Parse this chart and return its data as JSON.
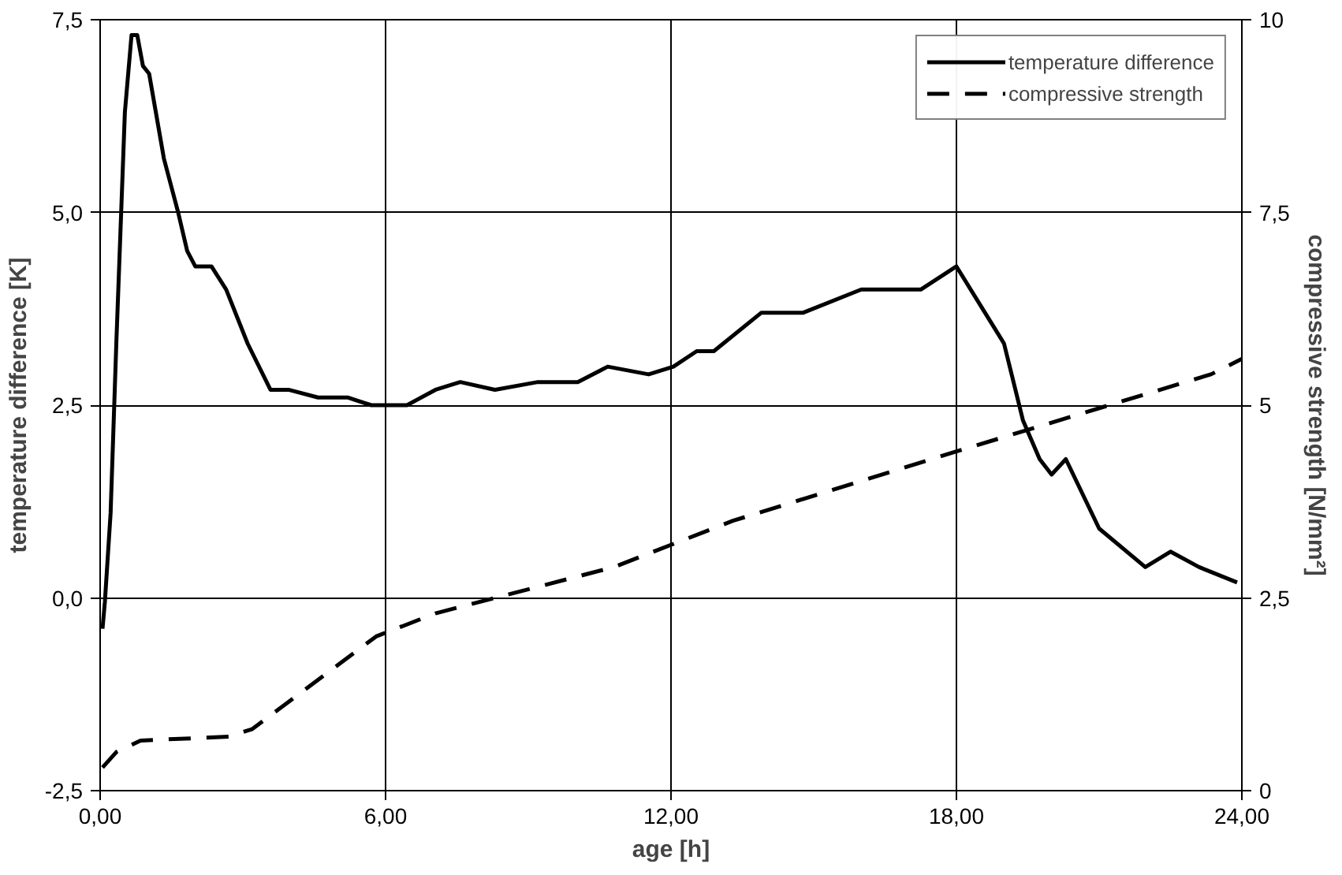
{
  "chart_data": {
    "type": "line",
    "xlabel": "age [h]",
    "ylabel": "temperature difference [K]",
    "y2label": "compressive strength [N/mm²]",
    "xlim": [
      0,
      24
    ],
    "xticks": [
      {
        "value": 0,
        "label": "0,00"
      },
      {
        "value": 6,
        "label": "6,00"
      },
      {
        "value": 12,
        "label": "12,00"
      },
      {
        "value": 18,
        "label": "18,00"
      },
      {
        "value": 24,
        "label": "24,00"
      }
    ],
    "ylim": [
      -2.5,
      7.5
    ],
    "yticks": [
      {
        "value": -2.5,
        "label": "-2,5"
      },
      {
        "value": 0,
        "label": "0,0"
      },
      {
        "value": 2.5,
        "label": "2,5"
      },
      {
        "value": 5,
        "label": "5,0"
      },
      {
        "value": 7.5,
        "label": "7,5"
      }
    ],
    "y2lim": [
      0,
      10
    ],
    "y2ticks": [
      0,
      {
        "value": 2.5,
        "label": "2,5"
      },
      5,
      {
        "value": 7.5,
        "label": "7,5"
      },
      10
    ],
    "grid": true,
    "legend": "top right",
    "marker": "none",
    "series": [
      {
        "name": "temperature difference",
        "color": "#000000",
        "line_style": "solid",
        "x": [
          0.05,
          0.1,
          0.22,
          0.34,
          0.52,
          0.66,
          0.78,
          0.9,
          1.03,
          1.34,
          1.64,
          1.83,
          2.0,
          2.34,
          2.65,
          3.1,
          3.58,
          3.96,
          4.58,
          5.2,
          5.7,
          6.45,
          7.05,
          7.57,
          8.3,
          9.2,
          10.04,
          10.67,
          11.53,
          12.05,
          12.54,
          12.9,
          13.9,
          14.78,
          16.0,
          17.25,
          18.0,
          18.5,
          19.0,
          19.4,
          19.75,
          20.0,
          20.3,
          21.0,
          21.97,
          22.5,
          23.1,
          23.9
        ],
        "values": [
          -0.4,
          -0.05,
          1.1,
          3.3,
          6.3,
          7.3,
          7.3,
          6.9,
          6.8,
          5.7,
          5.0,
          4.5,
          4.3,
          4.3,
          4.0,
          3.3,
          2.7,
          2.7,
          2.6,
          2.6,
          2.5,
          2.5,
          2.7,
          2.8,
          2.7,
          2.8,
          2.8,
          3.0,
          2.9,
          3.0,
          3.2,
          3.2,
          3.7,
          3.7,
          4.0,
          4.0,
          4.3,
          3.8,
          3.3,
          2.3,
          1.8,
          1.6,
          1.8,
          0.9,
          0.4,
          0.6,
          0.4,
          0.2
        ]
      },
      {
        "name": "compressive strength",
        "color": "#000000",
        "line_style": "dashed",
        "axis": "y2",
        "x": [
          0.05,
          0.34,
          0.85,
          2.7,
          3.2,
          5.8,
          7.05,
          10.8,
          13.3,
          18.0,
          23.35,
          24.0
        ],
        "values": [
          0.3,
          0.5,
          0.65,
          0.7,
          0.8,
          2.0,
          2.3,
          2.9,
          3.5,
          4.4,
          5.4,
          5.6
        ]
      }
    ]
  }
}
